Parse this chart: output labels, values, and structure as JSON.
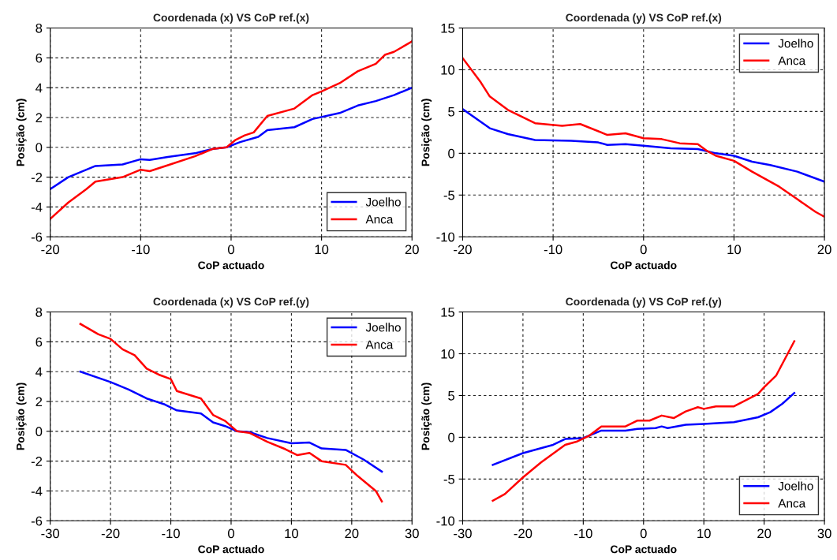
{
  "chart_data": [
    {
      "type": "line",
      "title": "Coordenada (x) VS CoP ref.(x)",
      "xlabel": "CoP actuado",
      "ylabel": "Posição (cm)",
      "xlim": [
        -20,
        20
      ],
      "xticks": [
        -20,
        -10,
        0,
        10,
        20
      ],
      "ylim": [
        -6,
        8
      ],
      "yticks": [
        -6,
        -4,
        -2,
        0,
        2,
        4,
        6,
        8
      ],
      "grid": true,
      "legend": "bottom right",
      "series": [
        {
          "name": "Joelho",
          "color": "#0000ff",
          "x": [
            -20,
            -18,
            -16,
            -15,
            -12,
            -10,
            -9,
            -7,
            -4,
            -2,
            -0.5,
            1,
            3,
            4,
            7,
            9,
            12,
            14,
            16,
            18,
            20
          ],
          "values": [
            -2.8,
            -2.0,
            -1.5,
            -1.25,
            -1.15,
            -0.8,
            -0.85,
            -0.65,
            -0.4,
            -0.1,
            0,
            0.35,
            0.7,
            1.15,
            1.35,
            1.9,
            2.3,
            2.8,
            3.1,
            3.5,
            4.0
          ]
        },
        {
          "name": "Anca",
          "color": "#ff0000",
          "x": [
            -20,
            -18,
            -16,
            -15,
            -12,
            -10,
            -9,
            -7,
            -4,
            -2,
            -0.5,
            0.5,
            1.5,
            2.5,
            4,
            7,
            9,
            10,
            12,
            14,
            16,
            17,
            18,
            20
          ],
          "values": [
            -4.8,
            -3.7,
            -2.8,
            -2.3,
            -2.0,
            -1.5,
            -1.6,
            -1.2,
            -0.6,
            -0.1,
            0,
            0.5,
            0.8,
            1.0,
            2.1,
            2.6,
            3.5,
            3.75,
            4.3,
            5.1,
            5.6,
            6.2,
            6.4,
            7.1
          ]
        }
      ]
    },
    {
      "type": "line",
      "title": "Coordenada (y) VS CoP ref.(x)",
      "xlabel": "CoP actuado",
      "ylabel": "Posição (cm)",
      "xlim": [
        -20,
        20
      ],
      "xticks": [
        -20,
        -10,
        0,
        10,
        20
      ],
      "ylim": [
        -10,
        15
      ],
      "yticks": [
        -10,
        -5,
        0,
        5,
        10,
        15
      ],
      "grid": true,
      "legend": "top right",
      "series": [
        {
          "name": "Joelho",
          "color": "#0000ff",
          "x": [
            -20,
            -17,
            -15,
            -12,
            -8,
            -5,
            -4,
            -2,
            0,
            3,
            6,
            8,
            10,
            12,
            14,
            17,
            20
          ],
          "values": [
            5.3,
            3.0,
            2.3,
            1.6,
            1.5,
            1.3,
            1.0,
            1.1,
            0.9,
            0.6,
            0.5,
            0,
            -0.3,
            -1.0,
            -1.4,
            -2.2,
            -3.4
          ]
        },
        {
          "name": "Anca",
          "color": "#ff0000",
          "x": [
            -20,
            -18,
            -17,
            -15,
            -12,
            -9,
            -7,
            -4,
            -2,
            0,
            2,
            4,
            6,
            7,
            8,
            10,
            12,
            15,
            17,
            19,
            20
          ],
          "values": [
            11.4,
            8.5,
            6.8,
            5.2,
            3.6,
            3.3,
            3.5,
            2.2,
            2.4,
            1.8,
            1.7,
            1.2,
            1.1,
            0.3,
            -0.3,
            -0.9,
            -2.2,
            -4.0,
            -5.5,
            -7.0,
            -7.6
          ]
        }
      ]
    },
    {
      "type": "line",
      "title": "Coordenada (x) VS CoP ref.(y)",
      "xlabel": "CoP actuado",
      "ylabel": "Posição (cm)",
      "xlim": [
        -30,
        30
      ],
      "xticks": [
        -30,
        -20,
        -10,
        0,
        10,
        20,
        30
      ],
      "ylim": [
        -6,
        8
      ],
      "yticks": [
        -6,
        -4,
        -2,
        0,
        2,
        4,
        6,
        8
      ],
      "grid": true,
      "legend": "top right",
      "series": [
        {
          "name": "Joelho",
          "color": "#0000ff",
          "x": [
            -25,
            -20,
            -17,
            -14,
            -11,
            -9,
            -5,
            -3,
            -1,
            1,
            3,
            6,
            10,
            13,
            15,
            19,
            22,
            25
          ],
          "values": [
            4.0,
            3.3,
            2.8,
            2.2,
            1.8,
            1.4,
            1.2,
            0.6,
            0.35,
            0,
            -0.05,
            -0.45,
            -0.8,
            -0.75,
            -1.15,
            -1.25,
            -1.9,
            -2.7
          ]
        },
        {
          "name": "Anca",
          "color": "#ff0000",
          "x": [
            -25,
            -22,
            -20,
            -18,
            -16,
            -14,
            -12,
            -10,
            -9,
            -5,
            -3,
            -1,
            1,
            3,
            6,
            9,
            11,
            13,
            15,
            19,
            21,
            24,
            25
          ],
          "values": [
            7.2,
            6.5,
            6.2,
            5.5,
            5.1,
            4.2,
            3.8,
            3.5,
            2.7,
            2.2,
            1.1,
            0.7,
            0,
            -0.1,
            -0.7,
            -1.2,
            -1.6,
            -1.45,
            -2.0,
            -2.25,
            -3.0,
            -4.0,
            -4.7
          ]
        }
      ]
    },
    {
      "type": "line",
      "title": "Coordenada (y) VS CoP ref.(y)",
      "xlabel": "CoP actuado",
      "ylabel": "Posição (cm)",
      "xlim": [
        -30,
        30
      ],
      "xticks": [
        -30,
        -20,
        -10,
        0,
        10,
        20,
        30
      ],
      "ylim": [
        -10,
        15
      ],
      "yticks": [
        -10,
        -5,
        0,
        5,
        10,
        15
      ],
      "grid": true,
      "legend": "bottom right",
      "series": [
        {
          "name": "Joelho",
          "color": "#0000ff",
          "x": [
            -25,
            -20,
            -15,
            -13,
            -10,
            -7,
            -3,
            -1,
            2,
            3,
            4,
            7,
            10,
            15,
            19,
            21,
            23,
            25
          ],
          "values": [
            -3.3,
            -1.9,
            -0.9,
            -0.2,
            -0.1,
            0.8,
            0.8,
            1.0,
            1.1,
            1.3,
            1.1,
            1.5,
            1.6,
            1.8,
            2.4,
            3.0,
            4.0,
            5.3
          ]
        },
        {
          "name": "Anca",
          "color": "#ff0000",
          "x": [
            -25,
            -23,
            -20,
            -17,
            -13,
            -11,
            -9,
            -7,
            -3,
            -1,
            1,
            3,
            5,
            7,
            9,
            10,
            12,
            15,
            19,
            20,
            22,
            25
          ],
          "values": [
            -7.6,
            -6.8,
            -4.8,
            -3.0,
            -0.9,
            -0.5,
            0.2,
            1.3,
            1.3,
            2.0,
            2.0,
            2.6,
            2.3,
            3.1,
            3.6,
            3.4,
            3.7,
            3.7,
            5.2,
            6.0,
            7.4,
            11.5
          ]
        }
      ]
    }
  ]
}
